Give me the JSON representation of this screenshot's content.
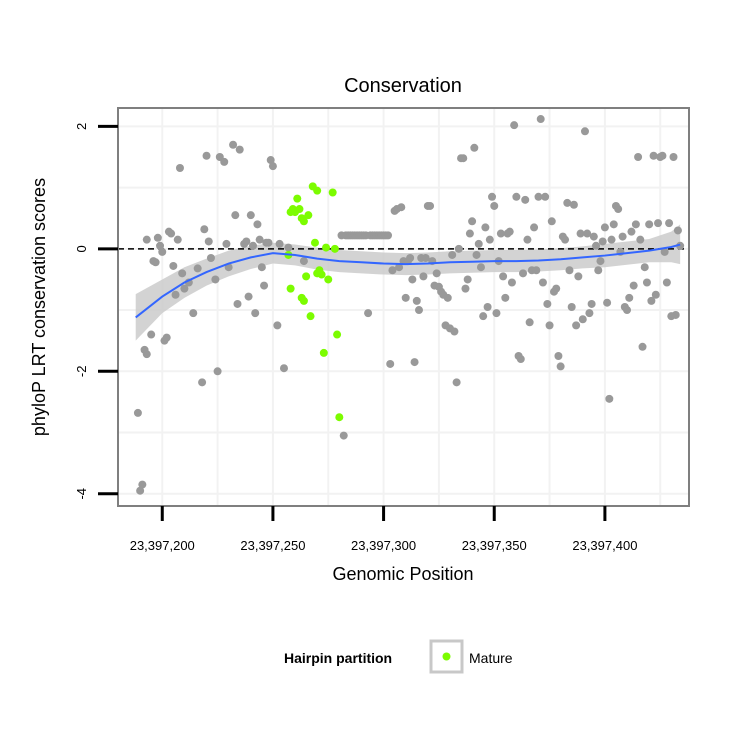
{
  "chart_data": {
    "type": "scatter",
    "title": "Conservation",
    "xlabel": "Genomic Position",
    "ylabel": "phyloP LRT conservation scores",
    "xlim": [
      23397180,
      23397438
    ],
    "ylim": [
      -4.2,
      2.3
    ],
    "x_ticks": [
      23397200,
      23397250,
      23397300,
      23397350,
      23397400
    ],
    "x_tick_labels": [
      "23,397,200",
      "23,397,250",
      "23,397,300",
      "23,397,350",
      "23,397,400"
    ],
    "y_ticks": [
      -4,
      -2,
      0,
      2
    ],
    "y_tick_labels": [
      "-4",
      "-2",
      "0",
      "2"
    ],
    "grid": true,
    "reference_line": {
      "y": 0,
      "style": "dashed",
      "color": "#000000"
    },
    "colors": {
      "other": "#999999",
      "mature": "#7CFC00",
      "smooth": "#3366FF",
      "ribbon": "#c8c8c8",
      "panel_border": "#7f7f7f"
    },
    "legend": {
      "title": "Hairpin partition",
      "entries": [
        "Mature"
      ],
      "position": "bottom"
    },
    "series": [
      {
        "color": "#999999",
        "points": [
          [
            23397189,
            -2.68
          ],
          [
            23397190,
            -3.95
          ],
          [
            23397191,
            -3.85
          ],
          [
            23397192,
            -1.65
          ],
          [
            23397193,
            -1.72
          ],
          [
            23397193,
            0.15
          ],
          [
            23397195,
            -1.4
          ],
          [
            23397196,
            -0.2
          ],
          [
            23397197,
            -0.22
          ],
          [
            23397198,
            0.18
          ],
          [
            23397199,
            0.05
          ],
          [
            23397200,
            -0.05
          ],
          [
            23397201,
            -1.5
          ],
          [
            23397202,
            -1.45
          ],
          [
            23397203,
            0.28
          ],
          [
            23397204,
            0.25
          ],
          [
            23397205,
            -0.28
          ],
          [
            23397206,
            -0.75
          ],
          [
            23397207,
            0.15
          ],
          [
            23397208,
            1.32
          ],
          [
            23397209,
            -0.4
          ],
          [
            23397210,
            -0.65
          ],
          [
            23397212,
            -0.55
          ],
          [
            23397214,
            -1.05
          ],
          [
            23397216,
            -0.32
          ],
          [
            23397218,
            -2.18
          ],
          [
            23397219,
            0.32
          ],
          [
            23397220,
            1.52
          ],
          [
            23397221,
            0.12
          ],
          [
            23397222,
            -0.15
          ],
          [
            23397224,
            -0.5
          ],
          [
            23397225,
            -2.0
          ],
          [
            23397226,
            1.5
          ],
          [
            23397228,
            1.42
          ],
          [
            23397229,
            0.08
          ],
          [
            23397230,
            -0.3
          ],
          [
            23397232,
            1.7
          ],
          [
            23397233,
            0.55
          ],
          [
            23397234,
            -0.9
          ],
          [
            23397235,
            1.62
          ],
          [
            23397237,
            0.08
          ],
          [
            23397238,
            0.12
          ],
          [
            23397239,
            -0.78
          ],
          [
            23397240,
            0.55
          ],
          [
            23397241,
            0.05
          ],
          [
            23397242,
            -1.05
          ],
          [
            23397243,
            0.4
          ],
          [
            23397244,
            0.15
          ],
          [
            23397245,
            -0.3
          ],
          [
            23397246,
            -0.6
          ],
          [
            23397247,
            0.1
          ],
          [
            23397248,
            0.1
          ],
          [
            23397249,
            1.45
          ],
          [
            23397250,
            1.35
          ],
          [
            23397252,
            -1.25
          ],
          [
            23397253,
            0.08
          ],
          [
            23397255,
            -1.95
          ],
          [
            23397257,
            0.02
          ],
          [
            23397264,
            -0.2
          ],
          [
            23397281,
            0.22
          ],
          [
            23397282,
            -3.05
          ],
          [
            23397283,
            0.22
          ],
          [
            23397284,
            0.22
          ],
          [
            23397285,
            0.22
          ],
          [
            23397286,
            0.22
          ],
          [
            23397287,
            0.22
          ],
          [
            23397288,
            0.22
          ],
          [
            23397289,
            0.22
          ],
          [
            23397290,
            0.22
          ],
          [
            23397291,
            0.22
          ],
          [
            23397292,
            0.22
          ],
          [
            23397293,
            -1.05
          ],
          [
            23397294,
            0.22
          ],
          [
            23397295,
            0.22
          ],
          [
            23397296,
            0.22
          ],
          [
            23397297,
            0.22
          ],
          [
            23397298,
            0.22
          ],
          [
            23397299,
            0.22
          ],
          [
            23397300,
            0.22
          ],
          [
            23397301,
            0.22
          ],
          [
            23397302,
            0.22
          ],
          [
            23397303,
            -1.88
          ],
          [
            23397304,
            -0.35
          ],
          [
            23397305,
            0.62
          ],
          [
            23397306,
            0.65
          ],
          [
            23397307,
            -0.3
          ],
          [
            23397308,
            0.68
          ],
          [
            23397309,
            -0.2
          ],
          [
            23397310,
            -0.8
          ],
          [
            23397311,
            -0.2
          ],
          [
            23397312,
            -0.15
          ],
          [
            23397313,
            -0.5
          ],
          [
            23397314,
            -1.85
          ],
          [
            23397315,
            -0.85
          ],
          [
            23397316,
            -1.0
          ],
          [
            23397317,
            -0.15
          ],
          [
            23397318,
            -0.45
          ],
          [
            23397319,
            -0.15
          ],
          [
            23397320,
            0.7
          ],
          [
            23397321,
            0.7
          ],
          [
            23397322,
            -0.2
          ],
          [
            23397323,
            -0.6
          ],
          [
            23397324,
            -0.4
          ],
          [
            23397325,
            -0.62
          ],
          [
            23397326,
            -0.7
          ],
          [
            23397327,
            -0.75
          ],
          [
            23397328,
            -1.25
          ],
          [
            23397329,
            -0.8
          ],
          [
            23397330,
            -1.3
          ],
          [
            23397331,
            -0.1
          ],
          [
            23397332,
            -1.35
          ],
          [
            23397333,
            -2.18
          ],
          [
            23397334,
            0.0
          ],
          [
            23397335,
            1.48
          ],
          [
            23397336,
            1.48
          ],
          [
            23397337,
            -0.65
          ],
          [
            23397338,
            -0.5
          ],
          [
            23397339,
            0.25
          ],
          [
            23397340,
            0.45
          ],
          [
            23397341,
            1.65
          ],
          [
            23397342,
            -0.1
          ],
          [
            23397343,
            0.08
          ],
          [
            23397344,
            -0.3
          ],
          [
            23397345,
            -1.1
          ],
          [
            23397346,
            0.35
          ],
          [
            23397347,
            -0.95
          ],
          [
            23397348,
            0.15
          ],
          [
            23397349,
            0.85
          ],
          [
            23397350,
            0.7
          ],
          [
            23397351,
            -1.05
          ],
          [
            23397352,
            -0.2
          ],
          [
            23397353,
            0.25
          ],
          [
            23397354,
            -0.45
          ],
          [
            23397355,
            -0.8
          ],
          [
            23397356,
            0.25
          ],
          [
            23397357,
            0.28
          ],
          [
            23397358,
            -0.55
          ],
          [
            23397359,
            2.02
          ],
          [
            23397360,
            0.85
          ],
          [
            23397361,
            -1.75
          ],
          [
            23397362,
            -1.8
          ],
          [
            23397363,
            -0.4
          ],
          [
            23397364,
            0.8
          ],
          [
            23397365,
            0.15
          ],
          [
            23397366,
            -1.2
          ],
          [
            23397367,
            -0.35
          ],
          [
            23397368,
            0.35
          ],
          [
            23397369,
            -0.35
          ],
          [
            23397370,
            0.85
          ],
          [
            23397371,
            2.12
          ],
          [
            23397372,
            -0.55
          ],
          [
            23397373,
            0.85
          ],
          [
            23397374,
            -0.9
          ],
          [
            23397375,
            -1.25
          ],
          [
            23397376,
            0.45
          ],
          [
            23397377,
            -0.7
          ],
          [
            23397378,
            -0.65
          ],
          [
            23397379,
            -1.75
          ],
          [
            23397380,
            -1.92
          ],
          [
            23397381,
            0.2
          ],
          [
            23397382,
            0.15
          ],
          [
            23397383,
            0.75
          ],
          [
            23397384,
            -0.35
          ],
          [
            23397385,
            -0.95
          ],
          [
            23397386,
            0.72
          ],
          [
            23397387,
            -1.25
          ],
          [
            23397388,
            -0.45
          ],
          [
            23397389,
            0.25
          ],
          [
            23397390,
            -1.15
          ],
          [
            23397391,
            1.92
          ],
          [
            23397392,
            0.25
          ],
          [
            23397393,
            -1.05
          ],
          [
            23397394,
            -0.9
          ],
          [
            23397395,
            0.2
          ],
          [
            23397396,
            0.05
          ],
          [
            23397397,
            -0.35
          ],
          [
            23397398,
            -0.2
          ],
          [
            23397399,
            0.12
          ],
          [
            23397400,
            0.35
          ],
          [
            23397401,
            -0.88
          ],
          [
            23397402,
            -2.45
          ],
          [
            23397403,
            0.15
          ],
          [
            23397404,
            0.4
          ],
          [
            23397405,
            0.7
          ],
          [
            23397406,
            0.65
          ],
          [
            23397407,
            -0.05
          ],
          [
            23397408,
            0.2
          ],
          [
            23397409,
            -0.95
          ],
          [
            23397410,
            -1.0
          ],
          [
            23397411,
            -0.8
          ],
          [
            23397412,
            0.28
          ],
          [
            23397413,
            -0.6
          ],
          [
            23397414,
            0.4
          ],
          [
            23397415,
            1.5
          ],
          [
            23397416,
            0.15
          ],
          [
            23397417,
            -1.6
          ],
          [
            23397418,
            -0.3
          ],
          [
            23397419,
            -0.55
          ],
          [
            23397420,
            0.4
          ],
          [
            23397421,
            -0.85
          ],
          [
            23397422,
            1.52
          ],
          [
            23397423,
            -0.75
          ],
          [
            23397424,
            0.42
          ],
          [
            23397425,
            1.5
          ],
          [
            23397426,
            1.52
          ],
          [
            23397427,
            -0.05
          ],
          [
            23397428,
            -0.55
          ],
          [
            23397429,
            0.42
          ],
          [
            23397430,
            -1.1
          ],
          [
            23397431,
            1.5
          ],
          [
            23397432,
            -1.08
          ],
          [
            23397433,
            0.3
          ],
          [
            23397434,
            0.05
          ]
        ]
      },
      {
        "name": "Mature",
        "color": "#7CFC00",
        "points": [
          [
            23397257,
            -0.1
          ],
          [
            23397258,
            -0.65
          ],
          [
            23397258,
            0.6
          ],
          [
            23397259,
            0.65
          ],
          [
            23397260,
            0.6
          ],
          [
            23397261,
            0.82
          ],
          [
            23397262,
            0.65
          ],
          [
            23397263,
            0.5
          ],
          [
            23397263,
            -0.8
          ],
          [
            23397264,
            -0.85
          ],
          [
            23397264,
            0.45
          ],
          [
            23397265,
            -0.45
          ],
          [
            23397266,
            0.55
          ],
          [
            23397267,
            -1.1
          ],
          [
            23397268,
            1.02
          ],
          [
            23397269,
            0.1
          ],
          [
            23397270,
            -0.4
          ],
          [
            23397270,
            0.95
          ],
          [
            23397271,
            -0.35
          ],
          [
            23397272,
            -0.42
          ],
          [
            23397273,
            -1.7
          ],
          [
            23397274,
            0.02
          ],
          [
            23397275,
            -0.5
          ],
          [
            23397277,
            0.92
          ],
          [
            23397278,
            0.0
          ],
          [
            23397279,
            -1.4
          ],
          [
            23397280,
            -2.75
          ]
        ]
      }
    ],
    "smooth": {
      "color": "#3366FF",
      "x": [
        23397188,
        23397200,
        23397210,
        23397220,
        23397230,
        23397240,
        23397250,
        23397260,
        23397270,
        23397280,
        23397290,
        23397300,
        23397310,
        23397320,
        23397330,
        23397340,
        23397350,
        23397360,
        23397370,
        23397380,
        23397390,
        23397400,
        23397410,
        23397420,
        23397430,
        23397434
      ],
      "y": [
        -1.12,
        -0.78,
        -0.55,
        -0.38,
        -0.24,
        -0.14,
        -0.07,
        -0.1,
        -0.16,
        -0.2,
        -0.22,
        -0.24,
        -0.25,
        -0.24,
        -0.22,
        -0.21,
        -0.2,
        -0.2,
        -0.19,
        -0.17,
        -0.14,
        -0.11,
        -0.07,
        -0.03,
        0.03,
        0.07
      ],
      "lower": [
        -1.5,
        -1.05,
        -0.8,
        -0.6,
        -0.45,
        -0.33,
        -0.24,
        -0.27,
        -0.34,
        -0.38,
        -0.4,
        -0.42,
        -0.43,
        -0.42,
        -0.4,
        -0.39,
        -0.38,
        -0.38,
        -0.37,
        -0.35,
        -0.32,
        -0.3,
        -0.26,
        -0.22,
        -0.22,
        -0.25
      ],
      "upper": [
        -0.74,
        -0.5,
        -0.3,
        -0.16,
        -0.03,
        0.05,
        0.1,
        0.07,
        0.02,
        -0.02,
        -0.04,
        -0.06,
        -0.07,
        -0.06,
        -0.04,
        -0.03,
        -0.02,
        -0.02,
        -0.01,
        0.01,
        0.04,
        0.08,
        0.12,
        0.16,
        0.28,
        0.4
      ]
    }
  }
}
